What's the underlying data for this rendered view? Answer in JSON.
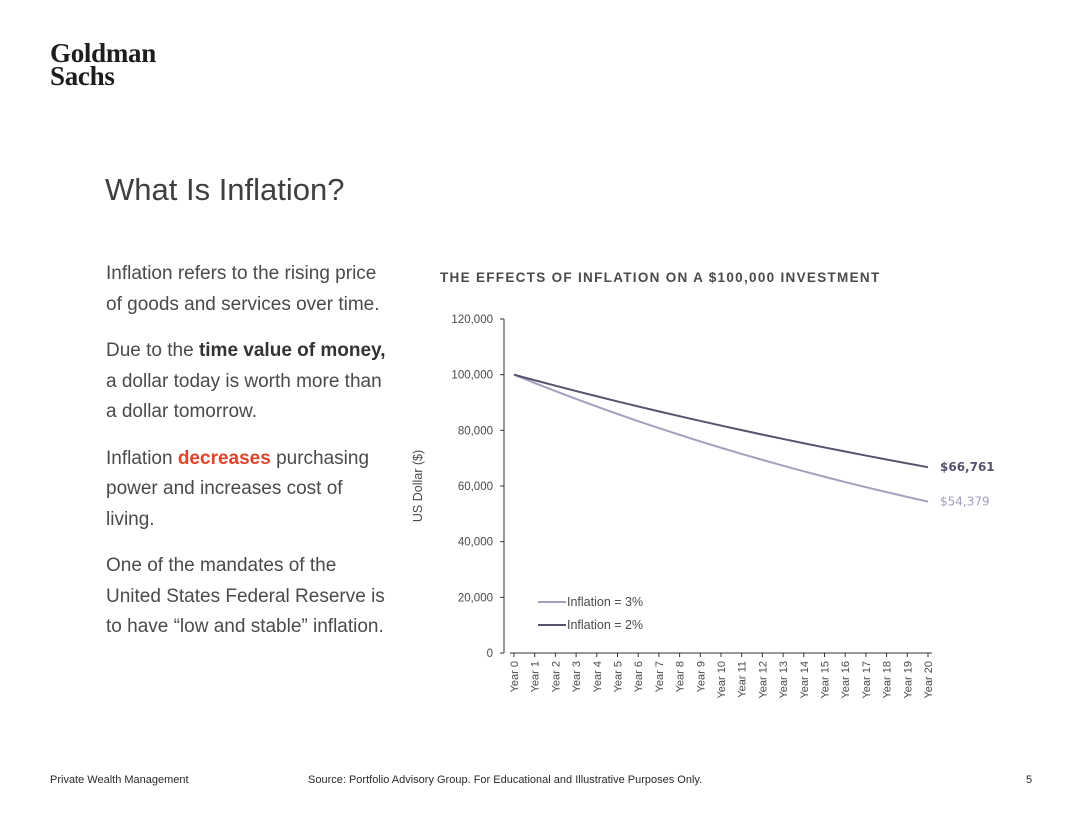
{
  "brand": {
    "logo_line1": "Goldman",
    "logo_line2": "Sachs"
  },
  "page": {
    "title": "What Is Inflation?"
  },
  "body": {
    "p1": "Inflation refers to the rising price of goods and services over time.",
    "p2_pre": "Due to the ",
    "p2_bold": "time value of money,",
    "p2_post": " a dollar today is worth more than a dollar tomorrow.",
    "p3_pre": "Inflation ",
    "p3_red": "decreases",
    "p3_post": " purchasing power and increases cost of living.",
    "p4": "One of the mandates of the United States Federal Reserve is to have “low and stable” inflation."
  },
  "footer": {
    "left": "Private Wealth Management",
    "source": "Source: Portfolio Advisory Group. For Educational and Illustrative Purposes Only.",
    "page_number": "5"
  },
  "chart_data": {
    "type": "line",
    "title": "THE EFFECTS OF INFLATION ON A $100,000 INVESTMENT",
    "ylabel": "US Dollar ($)",
    "xlabel": "",
    "ylim": [
      0,
      120000
    ],
    "yticks": [
      "0",
      "20,000",
      "40,000",
      "60,000",
      "80,000",
      "100,000",
      "120,000"
    ],
    "categories": [
      "Year 0",
      "Year 1",
      "Year 2",
      "Year 3",
      "Year 4",
      "Year 5",
      "Year 6",
      "Year 7",
      "Year 8",
      "Year 9",
      "Year 10",
      "Year 11",
      "Year 12",
      "Year 13",
      "Year 14",
      "Year 15",
      "Year 16",
      "Year 17",
      "Year 18",
      "Year 19",
      "Year 20"
    ],
    "series": [
      {
        "name": "Inflation = 3%",
        "color": "#a3a0bd",
        "end_label": "$54,379",
        "values": [
          100000,
          97000,
          94090,
          91267,
          88529,
          85873,
          83297,
          80798,
          78374,
          76023,
          73742,
          71530,
          69384,
          67303,
          65284,
          63325,
          61425,
          59583,
          57795,
          56061,
          54379
        ]
      },
      {
        "name": "Inflation = 2%",
        "color": "#57536f",
        "end_label": "$66,761",
        "values": [
          100000,
          98000,
          96040,
          94119,
          92237,
          90392,
          88584,
          86813,
          85076,
          83375,
          81707,
          80073,
          78472,
          76902,
          75364,
          73857,
          72380,
          70932,
          69514,
          68123,
          66761
        ]
      }
    ],
    "legend": "bottom-left",
    "grid": false
  }
}
